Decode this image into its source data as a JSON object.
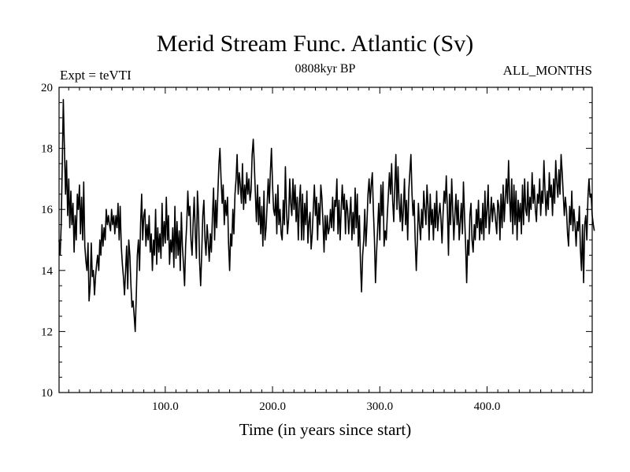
{
  "chart_data": {
    "type": "line",
    "title": "Merid Stream Func. Atlantic (Sv)",
    "header_left": "Expt = teVTI",
    "header_center": "0808kyr BP",
    "header_right": "ALL_MONTHS",
    "xlabel": "Time (in years since start)",
    "ylabel": "",
    "xlim": [
      1,
      498
    ],
    "ylim": [
      10,
      20
    ],
    "x_tick_values": [
      100,
      200,
      300,
      400
    ],
    "x_tick_labels": [
      "100.0",
      "200.0",
      "300.0",
      "400.0"
    ],
    "y_tick_values": [
      10,
      12,
      14,
      16,
      18,
      20
    ],
    "y_tick_labels": [
      "10",
      "12",
      "14",
      "16",
      "18",
      "20"
    ],
    "line_color": "#000000",
    "series": [
      {
        "name": "Merid Stream Func. Atlantic",
        "x_start": 1,
        "x_step": 1,
        "values": [
          15.0,
          14.5,
          15.5,
          17.5,
          19.6,
          18.0,
          16.5,
          17.6,
          15.8,
          17.0,
          15.4,
          16.6,
          15.5,
          16.2,
          14.6,
          15.8,
          15.0,
          16.5,
          16.0,
          16.8,
          15.2,
          16.4,
          15.0,
          16.9,
          14.8,
          14.3,
          14.0,
          14.9,
          13.0,
          13.5,
          14.9,
          13.8,
          14.0,
          13.2,
          13.8,
          14.2,
          14.5,
          14.0,
          15.0,
          14.5,
          15.5,
          14.8,
          15.4,
          15.0,
          16.0,
          15.5,
          15.8,
          15.5,
          15.3,
          16.0,
          15.5,
          15.8,
          15.2,
          15.8,
          15.4,
          16.2,
          15.0,
          16.1,
          14.8,
          14.2,
          13.8,
          13.2,
          14.0,
          14.8,
          13.4,
          15.0,
          14.5,
          13.5,
          12.8,
          13.0,
          12.5,
          12.0,
          13.2,
          14.5,
          15.0,
          14.0,
          15.5,
          16.5,
          15.0,
          15.8,
          16.0,
          14.8,
          15.5,
          15.0,
          15.8,
          14.6,
          15.2,
          14.0,
          15.0,
          14.5,
          16.0,
          14.2,
          15.4,
          14.6,
          15.2,
          14.4,
          16.2,
          14.8,
          15.6,
          14.9,
          16.4,
          15.0,
          15.8,
          14.2,
          15.0,
          14.6,
          15.4,
          14.1,
          16.1,
          14.4,
          15.6,
          14.5,
          15.3,
          14.0,
          15.9,
          14.8,
          14.2,
          13.5,
          14.8,
          15.5,
          16.6,
          15.8,
          16.1,
          15.0,
          14.5,
          15.6,
          16.4,
          15.2,
          14.4,
          16.6,
          15.8,
          14.3,
          13.5,
          14.6,
          15.8,
          16.3,
          15.0,
          14.5,
          15.5,
          15.0,
          14.3,
          15.2,
          14.6,
          15.8,
          16.7,
          15.0,
          16.3,
          15.4,
          16.5,
          17.5,
          18.0,
          17.0,
          16.2,
          16.8,
          15.5,
          16.3,
          15.8,
          16.4,
          14.9,
          14.0,
          15.2,
          14.8,
          16.0,
          15.2,
          16.5,
          17.0,
          17.8,
          16.5,
          17.2,
          16.8,
          16.2,
          17.5,
          16.0,
          16.8,
          16.2,
          17.2,
          16.5,
          17.0,
          16.3,
          16.6,
          17.8,
          18.3,
          17.5,
          16.5,
          15.6,
          16.8,
          15.5,
          16.4,
          15.2,
          16.1,
          14.8,
          16.6,
          15.0,
          15.4,
          16.2,
          17.0,
          16.2,
          17.2,
          18.0,
          16.8,
          16.0,
          15.8,
          16.5,
          15.2,
          16.8,
          15.5,
          16.0,
          15.2,
          15.0,
          16.3,
          15.5,
          17.4,
          16.0,
          15.2,
          15.7,
          17.0,
          16.2,
          15.8,
          17.0,
          16.0,
          16.8,
          15.6,
          16.4,
          15.0,
          16.2,
          16.8,
          15.0,
          16.5,
          15.0,
          16.2,
          15.5,
          16.6,
          14.9,
          15.6,
          15.9,
          14.7,
          15.2,
          16.0,
          16.8,
          15.8,
          16.4,
          15.0,
          16.2,
          15.5,
          16.8,
          16.4,
          15.6,
          14.6,
          15.8,
          15.0,
          15.8,
          15.2,
          15.4,
          16.0,
          15.4,
          16.4,
          15.3,
          16.3,
          16.1,
          17.0,
          15.2,
          16.3,
          15.0,
          16.0,
          16.8,
          16.0,
          16.5,
          15.2,
          16.3,
          16.0,
          15.2,
          15.8,
          16.4,
          15.0,
          15.9,
          15.2,
          16.7,
          15.4,
          16.5,
          14.8,
          15.8,
          14.2,
          13.3,
          14.5,
          15.0,
          16.0,
          14.8,
          15.5,
          16.5,
          17.0,
          16.2,
          16.8,
          17.2,
          16.0,
          15.0,
          13.6,
          14.6,
          15.4,
          16.2,
          15.0,
          16.8,
          15.8,
          16.9,
          14.8,
          15.3,
          15.0,
          15.8,
          16.5,
          17.2,
          16.5,
          17.5,
          16.3,
          15.6,
          16.8,
          17.8,
          16.0,
          17.4,
          16.2,
          15.6,
          16.5,
          15.3,
          16.0,
          17.0,
          15.5,
          16.3,
          15.0,
          16.6,
          17.2,
          17.8,
          16.5,
          15.8,
          16.3,
          15.0,
          14.0,
          15.0,
          16.2,
          15.5,
          15.0,
          16.0,
          15.4,
          16.6,
          16.0,
          15.5,
          16.8,
          16.1,
          15.0,
          16.5,
          15.5,
          16.0,
          15.0,
          16.2,
          15.4,
          16.6,
          15.3,
          15.8,
          16.2,
          15.7,
          14.9,
          15.9,
          16.6,
          16.2,
          17.1,
          16.0,
          14.5,
          16.5,
          15.5,
          17.0,
          16.0,
          15.0,
          15.8,
          16.5,
          15.5,
          16.3,
          15.0,
          15.6,
          16.2,
          15.2,
          16.9,
          15.8,
          14.8,
          13.6,
          15.0,
          14.5,
          15.8,
          16.2,
          15.0,
          14.6,
          15.5,
          15.0,
          16.0,
          15.4,
          16.3,
          15.0,
          15.7,
          15.2,
          16.2,
          15.0,
          16.6,
          15.4,
          16.0,
          16.8,
          15.2,
          15.8,
          16.4,
          15.6,
          16.2,
          16.0,
          15.6,
          15.2,
          16.3,
          16.1,
          15.0,
          16.5,
          15.4,
          16.8,
          15.6,
          16.4,
          17.0,
          16.2,
          17.6,
          16.4,
          15.6,
          17.0,
          15.2,
          16.8,
          15.5,
          16.6,
          15.0,
          16.3,
          15.6,
          16.2,
          15.2,
          16.8,
          15.5,
          17.0,
          16.0,
          15.8,
          16.9,
          15.6,
          16.4,
          16.0,
          17.2,
          16.2,
          16.8,
          16.0,
          15.6,
          16.5,
          16.2,
          17.0,
          15.8,
          16.6,
          16.2,
          17.6,
          16.6,
          15.8,
          16.6,
          16.0,
          17.2,
          16.4,
          16.8,
          15.8,
          17.0,
          16.2,
          17.6,
          16.9,
          16.4,
          17.3,
          16.5,
          17.8,
          17.2,
          16.5,
          15.8,
          16.4,
          16.0,
          15.2,
          14.8,
          16.1,
          15.5,
          16.6,
          15.3,
          16.0,
          15.5,
          14.8,
          15.6,
          15.3,
          16.1,
          14.7,
          14.0,
          15.5,
          13.6,
          15.5,
          15.8,
          15.0,
          16.4,
          17.0,
          16.4,
          16.5,
          15.8,
          15.5,
          15.3
        ]
      }
    ]
  }
}
